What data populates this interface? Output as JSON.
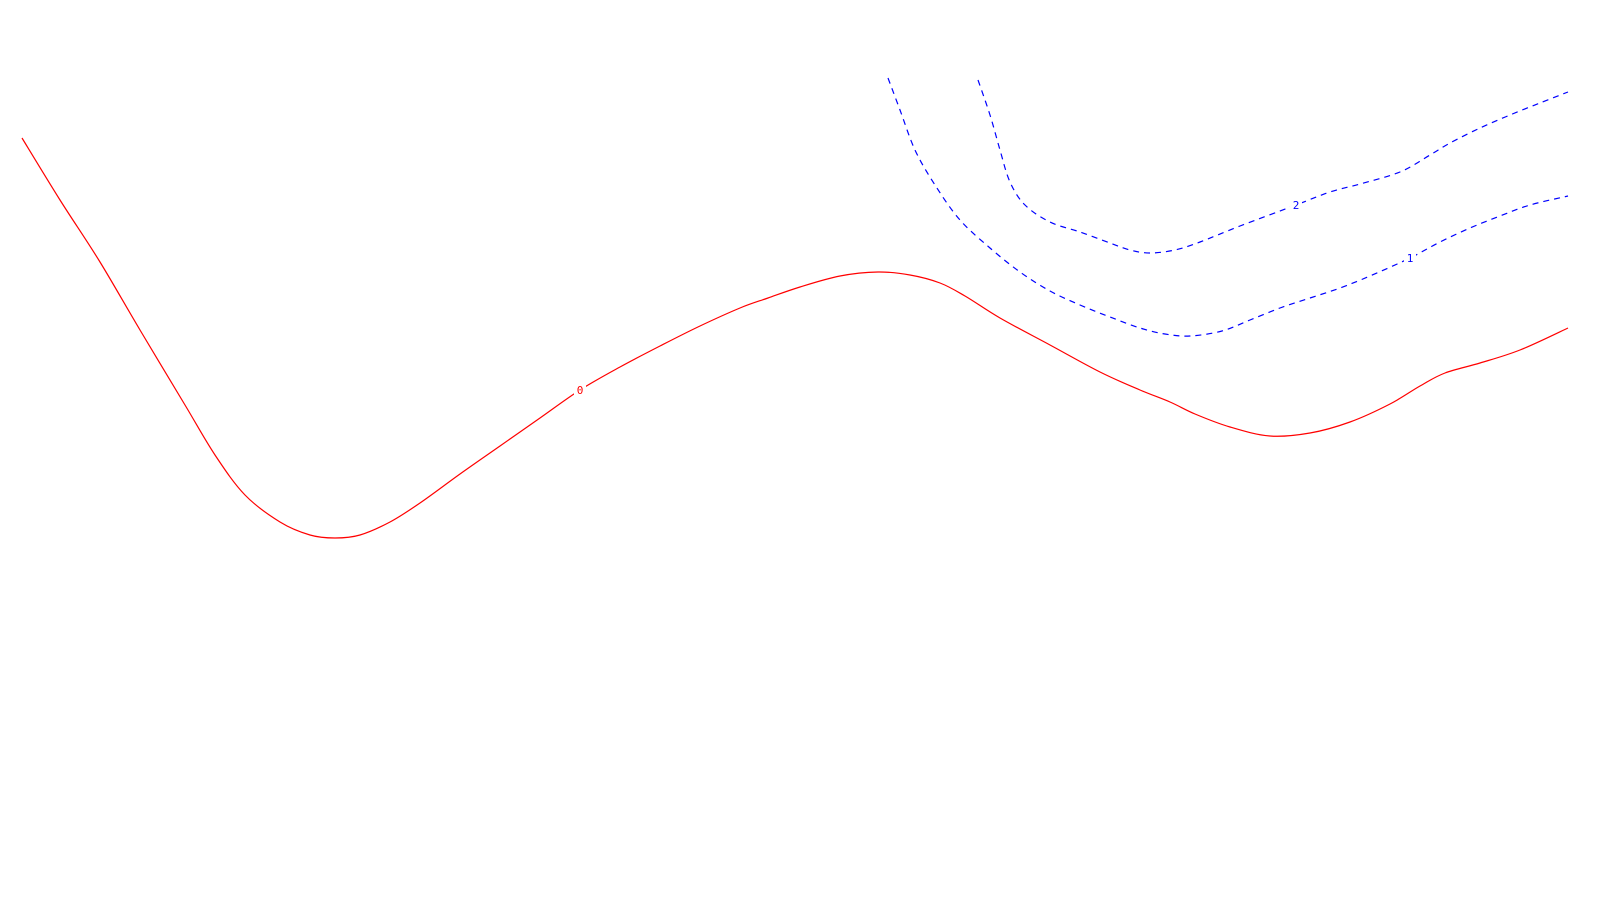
{
  "chart_data": {
    "type": "contour",
    "colors": {
      "zero": "#ff0000",
      "positive": "#0000ff",
      "background": "#ffffff"
    },
    "contours": [
      {
        "level": "0",
        "style": "solid",
        "label_at": 16,
        "points": [
          [
            22,
            138
          ],
          [
            60,
            200
          ],
          [
            100,
            262
          ],
          [
            140,
            330
          ],
          [
            185,
            405
          ],
          [
            215,
            455
          ],
          [
            245,
            495
          ],
          [
            280,
            522
          ],
          [
            310,
            535
          ],
          [
            335,
            538
          ],
          [
            360,
            535
          ],
          [
            390,
            522
          ],
          [
            420,
            503
          ],
          [
            460,
            474
          ],
          [
            500,
            446
          ],
          [
            540,
            418
          ],
          [
            580,
            390
          ],
          [
            620,
            367
          ],
          [
            660,
            346
          ],
          [
            700,
            326
          ],
          [
            740,
            308
          ],
          [
            768,
            298
          ],
          [
            800,
            287
          ],
          [
            840,
            276
          ],
          [
            878,
            272
          ],
          [
            910,
            275
          ],
          [
            940,
            283
          ],
          [
            965,
            296
          ],
          [
            1000,
            318
          ],
          [
            1050,
            345
          ],
          [
            1100,
            372
          ],
          [
            1140,
            390
          ],
          [
            1170,
            402
          ],
          [
            1195,
            414
          ],
          [
            1230,
            427
          ],
          [
            1270,
            436
          ],
          [
            1310,
            433
          ],
          [
            1350,
            422
          ],
          [
            1390,
            404
          ],
          [
            1420,
            386
          ],
          [
            1445,
            373
          ],
          [
            1480,
            363
          ],
          [
            1520,
            350
          ],
          [
            1568,
            328
          ]
        ]
      },
      {
        "level": "1",
        "style": "dashed",
        "label_at": 19,
        "points": [
          [
            888,
            78
          ],
          [
            900,
            110
          ],
          [
            915,
            150
          ],
          [
            935,
            185
          ],
          [
            960,
            220
          ],
          [
            990,
            248
          ],
          [
            1020,
            272
          ],
          [
            1050,
            291
          ],
          [
            1080,
            305
          ],
          [
            1110,
            317
          ],
          [
            1140,
            328
          ],
          [
            1165,
            334
          ],
          [
            1190,
            336
          ],
          [
            1222,
            331
          ],
          [
            1250,
            320
          ],
          [
            1280,
            308
          ],
          [
            1310,
            298
          ],
          [
            1340,
            288
          ],
          [
            1370,
            276
          ],
          [
            1410,
            258
          ],
          [
            1440,
            242
          ],
          [
            1470,
            228
          ],
          [
            1500,
            216
          ],
          [
            1530,
            205
          ],
          [
            1568,
            196
          ]
        ]
      },
      {
        "level": "2",
        "style": "dashed",
        "label_at": 13,
        "points": [
          [
            978,
            80
          ],
          [
            990,
            115
          ],
          [
            1000,
            150
          ],
          [
            1010,
            182
          ],
          [
            1025,
            205
          ],
          [
            1050,
            222
          ],
          [
            1080,
            232
          ],
          [
            1110,
            243
          ],
          [
            1130,
            250
          ],
          [
            1150,
            253
          ],
          [
            1175,
            250
          ],
          [
            1200,
            242
          ],
          [
            1240,
            226
          ],
          [
            1296,
            205
          ],
          [
            1330,
            192
          ],
          [
            1360,
            184
          ],
          [
            1400,
            172
          ],
          [
            1430,
            155
          ],
          [
            1450,
            143
          ],
          [
            1480,
            128
          ],
          [
            1510,
            115
          ],
          [
            1540,
            103
          ],
          [
            1568,
            92
          ]
        ]
      }
    ]
  }
}
